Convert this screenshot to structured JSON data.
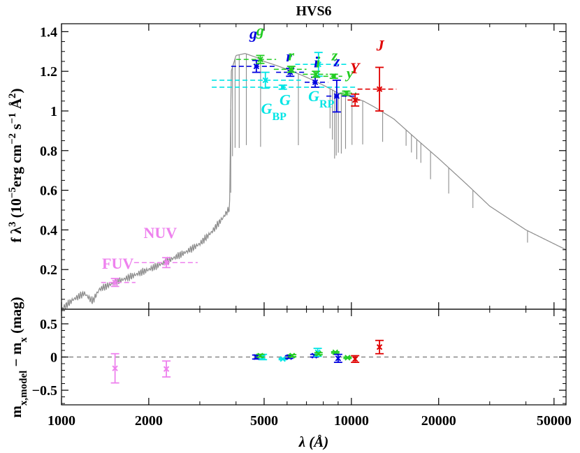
{
  "chart_data": {
    "type": "scatter",
    "title": "HVS6",
    "xlabel": "λ (Å)",
    "x_scale": "log",
    "xlim": [
      1000,
      55000
    ],
    "x_ticks": [
      1000,
      2000,
      5000,
      10000,
      20000,
      50000
    ],
    "x_tick_labels": [
      "1000",
      "2000",
      "5000",
      "10000",
      "20000",
      "50000"
    ],
    "colors": {
      "spectrum": "#8c8c8c",
      "GALEX": "#ee82ee",
      "Gaia": "#00e5e5",
      "SDSS": "#0000e0",
      "PanSTARRS": "#22cc22",
      "2MASS": "#e00000",
      "zero_line": "#888888"
    },
    "panels": [
      {
        "id": "sed",
        "ylabel_parts": [
          "f λ",
          "3",
          " (10",
          "−5",
          "erg cm",
          "−2",
          " s",
          "−1",
          " Å",
          "2",
          ")"
        ],
        "ylim": [
          0.0,
          1.44
        ],
        "y_ticks": [
          0.2,
          0.4,
          0.6,
          0.8,
          1.0,
          1.2,
          1.4
        ],
        "y_tick_labels": [
          "0.2",
          "0.4",
          "0.6",
          "0.8",
          "1",
          "1.2",
          "1.4"
        ],
        "model_spectrum_anchors": {
          "x": [
            1000,
            1100,
            1200,
            1280,
            1350,
            1500,
            1700,
            2000,
            2300,
            2700,
            3000,
            3300,
            3600,
            3800,
            3850,
            4000,
            4300,
            4700,
            5000,
            5500,
            6000,
            6500,
            7000,
            7500,
            8000,
            8500,
            9000,
            10000,
            11000,
            12000,
            14000,
            17000,
            20000,
            25000,
            30000,
            40000,
            55000
          ],
          "y": [
            0.0,
            0.05,
            0.08,
            0.04,
            0.1,
            0.13,
            0.16,
            0.2,
            0.24,
            0.29,
            0.33,
            0.39,
            0.46,
            0.51,
            1.2,
            1.28,
            1.29,
            1.27,
            1.25,
            1.23,
            1.21,
            1.19,
            1.17,
            1.15,
            1.13,
            1.11,
            1.09,
            1.07,
            1.05,
            1.02,
            0.96,
            0.85,
            0.76,
            0.63,
            0.52,
            0.4,
            0.3
          ]
        },
        "absorption_lines": [
          {
            "x": 3836,
            "depth": 0.42
          },
          {
            "x": 3890,
            "depth": 0.45
          },
          {
            "x": 3970,
            "depth": 0.45
          },
          {
            "x": 4102,
            "depth": 0.47
          },
          {
            "x": 4341,
            "depth": 0.46
          },
          {
            "x": 4861,
            "depth": 0.44
          },
          {
            "x": 6563,
            "depth": 0.36
          },
          {
            "x": 8440,
            "depth": 0.2
          },
          {
            "x": 8600,
            "depth": 0.25
          },
          {
            "x": 8750,
            "depth": 0.34
          },
          {
            "x": 8865,
            "depth": 0.32
          },
          {
            "x": 9015,
            "depth": 0.3
          },
          {
            "x": 9230,
            "depth": 0.3
          },
          {
            "x": 9546,
            "depth": 0.27
          },
          {
            "x": 10049,
            "depth": 0.24
          },
          {
            "x": 10938,
            "depth": 0.22
          },
          {
            "x": 12818,
            "depth": 0.15
          },
          {
            "x": 15440,
            "depth": 0.08
          },
          {
            "x": 16110,
            "depth": 0.09
          },
          {
            "x": 16810,
            "depth": 0.1
          },
          {
            "x": 17360,
            "depth": 0.1
          },
          {
            "x": 18750,
            "depth": 0.14
          },
          {
            "x": 21660,
            "depth": 0.13
          },
          {
            "x": 26250,
            "depth": 0.09
          },
          {
            "x": 40510,
            "depth": 0.06
          }
        ],
        "photometry": [
          {
            "band": "FUV",
            "group": "GALEX",
            "x": 1530,
            "y": 0.135,
            "yerr": 0.02,
            "xlo": 1370,
            "xhi": 1800
          },
          {
            "band": "NUV",
            "group": "GALEX",
            "x": 2300,
            "y": 0.235,
            "yerr": 0.025,
            "xlo": 1780,
            "xhi": 2950
          },
          {
            "band": "G_BP",
            "group": "Gaia",
            "x": 5050,
            "y": 1.155,
            "yerr": 0.04,
            "xlo": 3300,
            "xhi": 6700
          },
          {
            "band": "G",
            "group": "Gaia",
            "x": 5800,
            "y": 1.12,
            "yerr": 0.01,
            "xlo": 3300,
            "xhi": 10300
          },
          {
            "band": "G_RP",
            "group": "Gaia",
            "x": 7700,
            "y": 1.235,
            "yerr": 0.06,
            "xlo": 6400,
            "xhi": 9700
          },
          {
            "band": "g",
            "group": "SDSS",
            "x": 4700,
            "y": 1.225,
            "yerr": 0.03,
            "xlo": 3850,
            "xhi": 5450
          },
          {
            "band": "r",
            "group": "SDSS",
            "x": 6150,
            "y": 1.195,
            "yerr": 0.02,
            "xlo": 5500,
            "xhi": 6900
          },
          {
            "band": "i",
            "group": "SDSS",
            "x": 7500,
            "y": 1.145,
            "yerr": 0.025,
            "xlo": 6900,
            "xhi": 8300
          },
          {
            "band": "z",
            "group": "SDSS",
            "x": 8900,
            "y": 1.075,
            "yerr": 0.08,
            "xlo": 8200,
            "xhi": 10400
          },
          {
            "band": "g",
            "group": "PanSTARRS",
            "x": 4850,
            "y": 1.26,
            "yerr": 0.02,
            "xlo": 4000,
            "xhi": 5500
          },
          {
            "band": "r",
            "group": "PanSTARRS",
            "x": 6200,
            "y": 1.21,
            "yerr": 0.015,
            "xlo": 5400,
            "xhi": 7000
          },
          {
            "band": "i",
            "group": "PanSTARRS",
            "x": 7550,
            "y": 1.185,
            "yerr": 0.015,
            "xlo": 6800,
            "xhi": 8300
          },
          {
            "band": "z",
            "group": "PanSTARRS",
            "x": 8700,
            "y": 1.175,
            "yerr": 0.01,
            "xlo": 8000,
            "xhi": 9300
          },
          {
            "band": "y",
            "group": "PanSTARRS",
            "x": 9600,
            "y": 1.09,
            "yerr": 0.01,
            "xlo": 9100,
            "xhi": 10400
          },
          {
            "band": "Y",
            "group": "2MASS",
            "x": 10300,
            "y": 1.055,
            "yerr": 0.03,
            "xlo": 9700,
            "xhi": 10900
          },
          {
            "band": "J",
            "group": "2MASS",
            "x": 12500,
            "y": 1.11,
            "yerr": 0.11,
            "xlo": 10500,
            "xhi": 14300
          }
        ],
        "band_labels": [
          {
            "group": "GALEX",
            "parts": [
              [
                "FUV",
                ""
              ]
            ],
            "x": 1380,
            "y": 0.205
          },
          {
            "group": "GALEX",
            "parts": [
              [
                "NUV",
                ""
              ]
            ],
            "x": 1920,
            "y": 0.36
          },
          {
            "group": "Gaia",
            "parts": [
              [
                "G",
                ""
              ],
              [
                "BP",
                "sub"
              ]
            ],
            "x": 4880,
            "y": 0.985,
            "italic": true
          },
          {
            "group": "Gaia",
            "parts": [
              [
                "G",
                ""
              ]
            ],
            "x": 5650,
            "y": 1.03,
            "italic": true
          },
          {
            "group": "Gaia",
            "parts": [
              [
                "G",
                ""
              ],
              [
                "RP",
                "sub"
              ]
            ],
            "x": 7100,
            "y": 1.05,
            "italic": true
          },
          {
            "group": "SDSS",
            "parts": [
              [
                "g",
                ""
              ]
            ],
            "x": 4450,
            "y": 1.365,
            "italic": true
          },
          {
            "group": "SDSS",
            "parts": [
              [
                "r",
                ""
              ]
            ],
            "x": 5950,
            "y": 1.25,
            "italic": true
          },
          {
            "group": "SDSS",
            "parts": [
              [
                "i",
                ""
              ]
            ],
            "x": 7420,
            "y": 1.22,
            "italic": true
          },
          {
            "group": "SDSS",
            "parts": [
              [
                "z",
                ""
              ]
            ],
            "x": 8700,
            "y": 1.225,
            "italic": true
          },
          {
            "group": "PanSTARRS",
            "parts": [
              [
                "g",
                ""
              ]
            ],
            "x": 4700,
            "y": 1.38,
            "italic": true
          },
          {
            "group": "PanSTARRS",
            "parts": [
              [
                "r",
                ""
              ]
            ],
            "x": 6050,
            "y": 1.255,
            "italic": true
          },
          {
            "group": "PanSTARRS",
            "parts": [
              [
                "i",
                ""
              ]
            ],
            "x": 7550,
            "y": 1.22,
            "italic": true
          },
          {
            "group": "PanSTARRS",
            "parts": [
              [
                "z",
                ""
              ]
            ],
            "x": 8550,
            "y": 1.255,
            "italic": true
          },
          {
            "group": "PanSTARRS",
            "parts": [
              [
                "y",
                ""
              ]
            ],
            "x": 9620,
            "y": 1.165,
            "italic": true
          },
          {
            "group": "2MASS",
            "parts": [
              [
                "Y",
                ""
              ]
            ],
            "x": 9900,
            "y": 1.19,
            "italic": true
          },
          {
            "group": "2MASS",
            "parts": [
              [
                "J",
                ""
              ]
            ],
            "x": 12200,
            "y": 1.305,
            "italic": true
          }
        ]
      },
      {
        "id": "residuals",
        "ylabel_parts": [
          "m",
          "x,model",
          " − m",
          "x",
          " (mag)"
        ],
        "ylim": [
          -0.72,
          0.72
        ],
        "y_ticks": [
          -0.5,
          0.0,
          0.5
        ],
        "y_tick_labels": [
          "−0.5",
          "0",
          "0.5"
        ],
        "zero_line": 0,
        "residuals": [
          {
            "band": "FUV",
            "group": "GALEX",
            "x": 1530,
            "y": -0.17,
            "yerr": 0.22
          },
          {
            "band": "NUV",
            "group": "GALEX",
            "x": 2300,
            "y": -0.18,
            "yerr": 0.12
          },
          {
            "band": "g",
            "group": "SDSS",
            "x": 4700,
            "y": 0.0,
            "yerr": 0.03
          },
          {
            "band": "G_BP",
            "group": "Gaia",
            "x": 4950,
            "y": 0.0,
            "yerr": 0.04
          },
          {
            "band": "g",
            "group": "PanSTARRS",
            "x": 4850,
            "y": 0.02,
            "yerr": 0.02
          },
          {
            "band": "G",
            "group": "Gaia",
            "x": 5800,
            "y": -0.03,
            "yerr": 0.01
          },
          {
            "band": "r",
            "group": "SDSS",
            "x": 6100,
            "y": 0.0,
            "yerr": 0.02
          },
          {
            "band": "r",
            "group": "PanSTARRS",
            "x": 6250,
            "y": 0.02,
            "yerr": 0.015
          },
          {
            "band": "i",
            "group": "SDSS",
            "x": 7450,
            "y": 0.02,
            "yerr": 0.02
          },
          {
            "band": "G_RP",
            "group": "Gaia",
            "x": 7650,
            "y": 0.07,
            "yerr": 0.06
          },
          {
            "band": "i",
            "group": "PanSTARRS",
            "x": 7700,
            "y": 0.05,
            "yerr": 0.015
          },
          {
            "band": "z",
            "group": "PanSTARRS",
            "x": 8800,
            "y": 0.07,
            "yerr": 0.01
          },
          {
            "band": "z",
            "group": "SDSS",
            "x": 9000,
            "y": -0.02,
            "yerr": 0.06
          },
          {
            "band": "y",
            "group": "PanSTARRS",
            "x": 9700,
            "y": -0.01,
            "yerr": 0.01
          },
          {
            "band": "Y",
            "group": "2MASS",
            "x": 10300,
            "y": -0.03,
            "yerr": 0.05
          },
          {
            "band": "J",
            "group": "2MASS",
            "x": 12500,
            "y": 0.15,
            "yerr": 0.1
          }
        ]
      }
    ]
  }
}
